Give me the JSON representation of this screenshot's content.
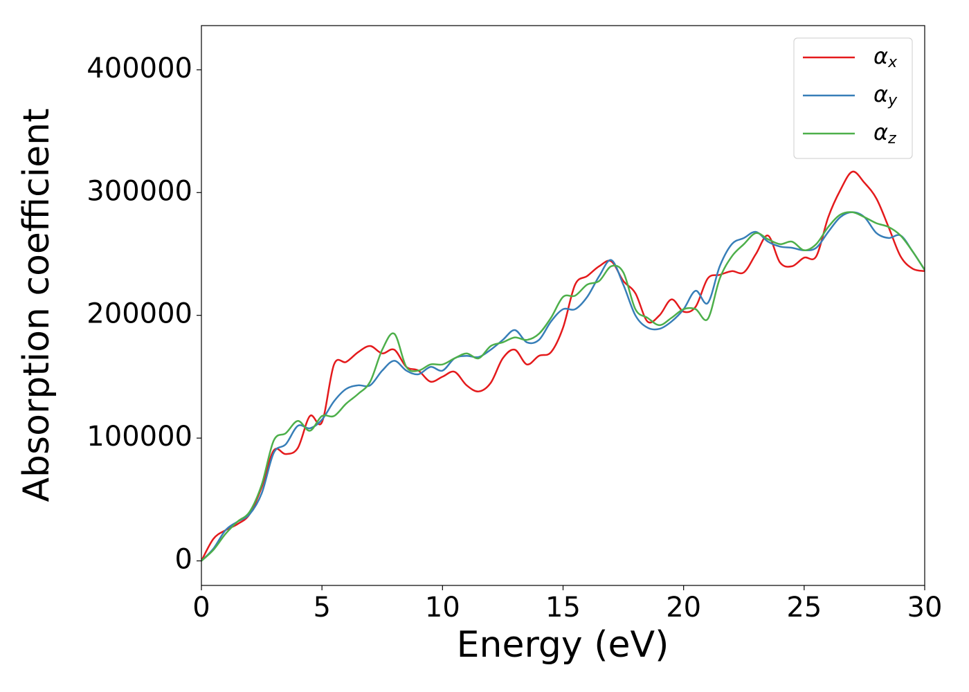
{
  "chart_data": {
    "type": "line",
    "xlabel": "Energy (eV)",
    "ylabel": "Absorption coefficient",
    "x": [
      0,
      0.5,
      1,
      1.5,
      2,
      2.5,
      3,
      3.5,
      4,
      4.5,
      5,
      5.5,
      6,
      6.5,
      7,
      7.5,
      8,
      8.5,
      9,
      9.5,
      10,
      10.5,
      11,
      11.5,
      12,
      12.5,
      13,
      13.5,
      14,
      14.5,
      15,
      15.5,
      16,
      16.5,
      17,
      17.5,
      18,
      18.5,
      19,
      19.5,
      20,
      20.5,
      21,
      21.5,
      22,
      22.5,
      23,
      23.5,
      24,
      24.5,
      25,
      25.5,
      26,
      26.5,
      27,
      27.5,
      28,
      28.5,
      29,
      29.5,
      30
    ],
    "series": [
      {
        "name": "αx",
        "color": "#e41a1c",
        "values": [
          0,
          18000,
          25000,
          30000,
          38000,
          60000,
          90000,
          87000,
          92000,
          118000,
          113000,
          160000,
          162000,
          170000,
          175000,
          169000,
          172000,
          158000,
          155000,
          146000,
          150000,
          154000,
          143000,
          138000,
          145000,
          165000,
          172000,
          160000,
          167000,
          170000,
          190000,
          225000,
          232000,
          240000,
          244000,
          228000,
          218000,
          195000,
          200000,
          213000,
          203000,
          207000,
          230000,
          233000,
          236000,
          235000,
          250000,
          265000,
          243000,
          240000,
          247000,
          248000,
          280000,
          302000,
          317000,
          308000,
          295000,
          272000,
          248000,
          238000,
          236000
        ]
      },
      {
        "name": "αy",
        "color": "#377eb8",
        "values": [
          0,
          10000,
          25000,
          32000,
          38000,
          55000,
          88000,
          95000,
          110000,
          108000,
          115000,
          130000,
          140000,
          143000,
          143000,
          155000,
          163000,
          155000,
          152000,
          158000,
          155000,
          165000,
          167000,
          166000,
          172000,
          180000,
          188000,
          178000,
          180000,
          195000,
          205000,
          205000,
          215000,
          232000,
          245000,
          225000,
          200000,
          190000,
          189000,
          195000,
          205000,
          220000,
          210000,
          240000,
          258000,
          263000,
          268000,
          260000,
          256000,
          255000,
          253000,
          255000,
          268000,
          280000,
          284000,
          280000,
          267000,
          263000,
          265000,
          252000,
          237000
        ]
      },
      {
        "name": "αz",
        "color": "#4daf4a",
        "values": [
          0,
          9000,
          22000,
          32000,
          40000,
          62000,
          98000,
          104000,
          114000,
          106000,
          118000,
          118000,
          128000,
          136000,
          146000,
          172000,
          185000,
          158000,
          155000,
          160000,
          160000,
          165000,
          169000,
          165000,
          175000,
          178000,
          182000,
          180000,
          185000,
          198000,
          215000,
          216000,
          225000,
          228000,
          240000,
          235000,
          205000,
          198000,
          192000,
          198000,
          205000,
          205000,
          197000,
          230000,
          248000,
          258000,
          267000,
          262000,
          258000,
          260000,
          253000,
          258000,
          272000,
          282000,
          284000,
          280000,
          275000,
          272000,
          265000,
          252000,
          237000
        ]
      }
    ],
    "xlim": [
      0,
      30
    ],
    "xticks": [
      0,
      5,
      10,
      15,
      20,
      25,
      30
    ],
    "ylim": [
      -20000,
      436000
    ],
    "yticks": [
      0,
      100000,
      200000,
      300000,
      400000
    ],
    "legend": "upper right",
    "grid": false
  }
}
